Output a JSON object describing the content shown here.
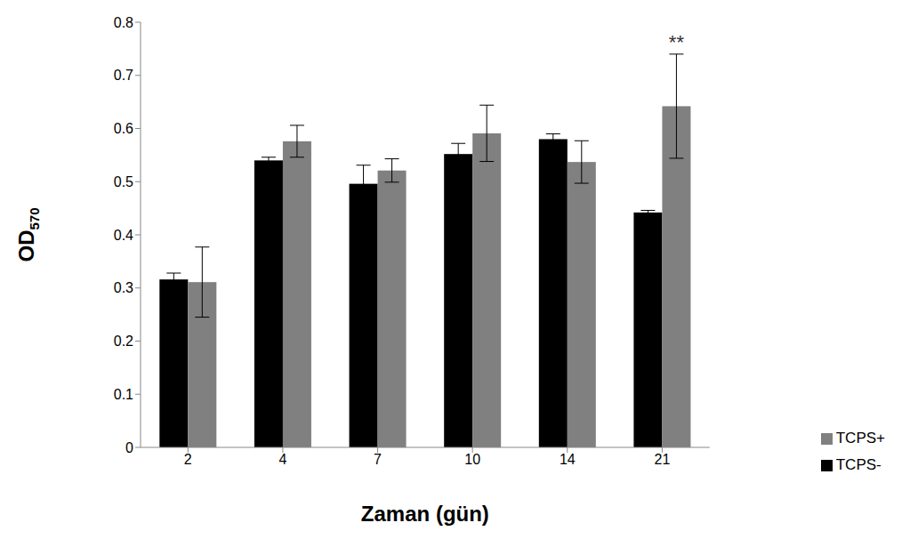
{
  "chart_data": {
    "type": "bar",
    "x_label": "Zaman (gün)",
    "y_label": "OD570",
    "categories": [
      "2",
      "4",
      "7",
      "10",
      "14",
      "21"
    ],
    "series": [
      {
        "name": "TCPS-",
        "color": "#000000",
        "values": [
          0.316,
          0.54,
          0.496,
          0.552,
          0.58,
          0.442
        ],
        "errors": [
          0.012,
          0.006,
          0.035,
          0.02,
          0.01,
          0.004
        ]
      },
      {
        "name": "TCPS+",
        "color": "#808080",
        "values": [
          0.311,
          0.576,
          0.521,
          0.591,
          0.537,
          0.642
        ],
        "errors": [
          0.066,
          0.03,
          0.022,
          0.053,
          0.04,
          0.098
        ]
      }
    ],
    "annotations": [
      {
        "text": "**",
        "category": "21",
        "series": "TCPS+"
      }
    ],
    "ylim": [
      0,
      0.8
    ],
    "yticks": [
      0,
      0.1,
      0.2,
      0.3,
      0.4,
      0.5,
      0.6,
      0.7,
      0.8
    ],
    "grid": false,
    "legend": "right"
  }
}
